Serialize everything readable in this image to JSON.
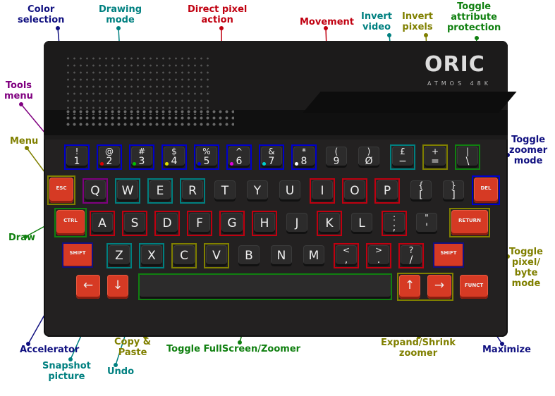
{
  "brand": {
    "logo": "ORIC",
    "model": "ATMOS 48K"
  },
  "colors": {
    "navy": "#101080",
    "teal": "#008080",
    "red": "#c00010",
    "olive": "#808000",
    "green": "#108010",
    "purple": "#800080",
    "blue": "#0000ee"
  },
  "labels": {
    "color_selection": [
      "Color",
      "selection"
    ],
    "drawing_mode": [
      "Drawing",
      "mode"
    ],
    "direct_pixel_action": [
      "Direct pixel",
      "action"
    ],
    "movement": [
      "Movement"
    ],
    "invert_video": [
      "Invert",
      "video"
    ],
    "invert_pixels": [
      "Invert",
      "pixels"
    ],
    "toggle_attr": [
      "Toggle",
      "attribute",
      "protection"
    ],
    "tools_menu": [
      "Tools",
      "menu"
    ],
    "menu": [
      "Menu"
    ],
    "toggle_zoomer_mode": [
      "Toggle",
      "zoomer",
      "mode"
    ],
    "draw": [
      "Draw"
    ],
    "toggle_pixel_byte": [
      "Toggle",
      "pixel/",
      "byte",
      "mode"
    ],
    "accelerator": [
      "Accelerator"
    ],
    "snapshot": [
      "Snapshot",
      "picture"
    ],
    "undo": [
      "Undo"
    ],
    "copy_paste": [
      "Copy &",
      "Paste"
    ],
    "toggle_fullscreen": [
      "Toggle FullScreen/Zoomer"
    ],
    "expand_shrink": [
      "Expand/Shrink",
      "zoomer"
    ],
    "maximize": [
      "Maximize"
    ]
  },
  "keys": {
    "row1": [
      {
        "top": "!",
        "bot": "1"
      },
      {
        "top": "@",
        "bot": "2"
      },
      {
        "top": "#",
        "bot": "3"
      },
      {
        "top": "$",
        "bot": "4"
      },
      {
        "top": "%",
        "bot": "5"
      },
      {
        "top": "^",
        "bot": "6"
      },
      {
        "top": "&",
        "bot": "7"
      },
      {
        "top": "*",
        "bot": "8"
      },
      {
        "top": "(",
        "bot": "9"
      },
      {
        "top": ")",
        "bot": "Ø"
      },
      {
        "top": "£",
        "bot": "−"
      },
      {
        "top": "+",
        "bot": "="
      },
      {
        "top": "|",
        "bot": "\\"
      }
    ],
    "row2": [
      "Q",
      "W",
      "E",
      "R",
      "T",
      "Y",
      "U",
      "I",
      "O",
      "P"
    ],
    "row2_brackets": [
      {
        "top": "{",
        "bot": "["
      },
      {
        "top": "}",
        "bot": "]"
      }
    ],
    "row3": [
      "A",
      "S",
      "D",
      "F",
      "G",
      "H",
      "J",
      "K",
      "L"
    ],
    "row3_punct": [
      {
        "top": ":",
        "bot": ";"
      },
      {
        "top": "\"",
        "bot": "'"
      }
    ],
    "row4": [
      "Z",
      "X",
      "C",
      "V",
      "B",
      "N",
      "M"
    ],
    "row4_punct": [
      {
        "top": "<",
        "bot": ","
      },
      {
        "top": ">",
        "bot": "."
      },
      {
        "top": "?",
        "bot": "/"
      }
    ],
    "esc": "ESC",
    "del": "DEL",
    "ctrl": "CTRL",
    "return": "RETURN",
    "shift_left": "SHIFT",
    "shift_right": "SHIFT",
    "funct": "FUNCT",
    "arrow_left": "←",
    "arrow_down": "↓",
    "arrow_up": "↑",
    "arrow_right": "→"
  }
}
